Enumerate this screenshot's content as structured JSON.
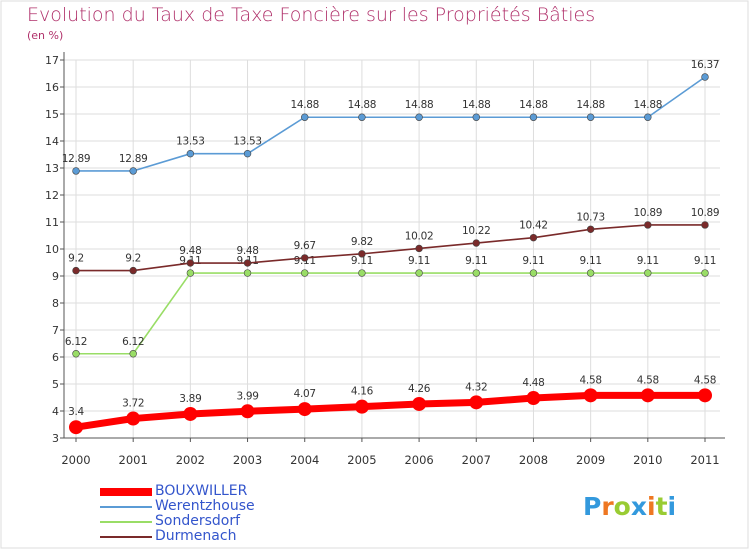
{
  "title": "Evolution du Taux de Taxe Foncière sur les Propriétés Bâties",
  "unit_label": "(en %)",
  "chart_data": {
    "type": "line",
    "x": [
      "2000",
      "2001",
      "2002",
      "2003",
      "2004",
      "2005",
      "2006",
      "2007",
      "2008",
      "2009",
      "2010",
      "2011"
    ],
    "ylim": [
      3,
      17
    ],
    "yticks": [
      3,
      4,
      5,
      6,
      7,
      8,
      9,
      10,
      11,
      12,
      13,
      14,
      15,
      16,
      17
    ],
    "grid": true,
    "legend_position": "bottom-left",
    "series": [
      {
        "name": "BOUXWILLER",
        "color": "#ff0000",
        "labels": [
          "3.4",
          "3.72",
          "3.89",
          "3.99",
          "4.07",
          "4.16",
          "4.26",
          "4.32",
          "4.48",
          "4.58",
          "4.58",
          "4.58"
        ],
        "values": [
          3.4,
          3.72,
          3.89,
          3.99,
          4.07,
          4.16,
          4.26,
          4.32,
          4.48,
          4.58,
          4.58,
          4.58
        ]
      },
      {
        "name": "Werentzhouse",
        "color": "#5b9bd5",
        "labels": [
          "12.89",
          "12.89",
          "13.53",
          "13.53",
          "14.88",
          "14.88",
          "14.88",
          "14.88",
          "14.88",
          "14.88",
          "14.88",
          "16.37"
        ],
        "values": [
          12.89,
          12.89,
          13.53,
          13.53,
          14.88,
          14.88,
          14.88,
          14.88,
          14.88,
          14.88,
          14.88,
          16.37
        ]
      },
      {
        "name": "Sondersdorf",
        "color": "#99dd66",
        "labels": [
          "6.12",
          "6.12",
          "9.11",
          "9.11",
          "9.11",
          "9.11",
          "9.11",
          "9.11",
          "9.11",
          "9.11",
          "9.11",
          "9.11"
        ],
        "values": [
          6.12,
          6.12,
          9.11,
          9.11,
          9.11,
          9.11,
          9.11,
          9.11,
          9.11,
          9.11,
          9.11,
          9.11
        ]
      },
      {
        "name": "Durmenach",
        "color": "#7a2a2a",
        "labels": [
          "9.2",
          "9.2",
          "9.48",
          "9.48",
          "9.67",
          "9.82",
          "10.02",
          "10.22",
          "10.42",
          "10.73",
          "10.89",
          "10.89"
        ],
        "values": [
          9.2,
          9.2,
          9.48,
          9.48,
          9.67,
          9.82,
          10.02,
          10.22,
          10.42,
          10.73,
          10.89,
          10.89
        ]
      }
    ]
  },
  "logo": {
    "letters": [
      "P",
      "r",
      "o",
      "x",
      "i",
      "t",
      "i"
    ],
    "colors": [
      "#3399dd",
      "#ee7722",
      "#99cc33",
      "#3399dd",
      "#ee7722",
      "#99cc33",
      "#3399dd"
    ]
  }
}
